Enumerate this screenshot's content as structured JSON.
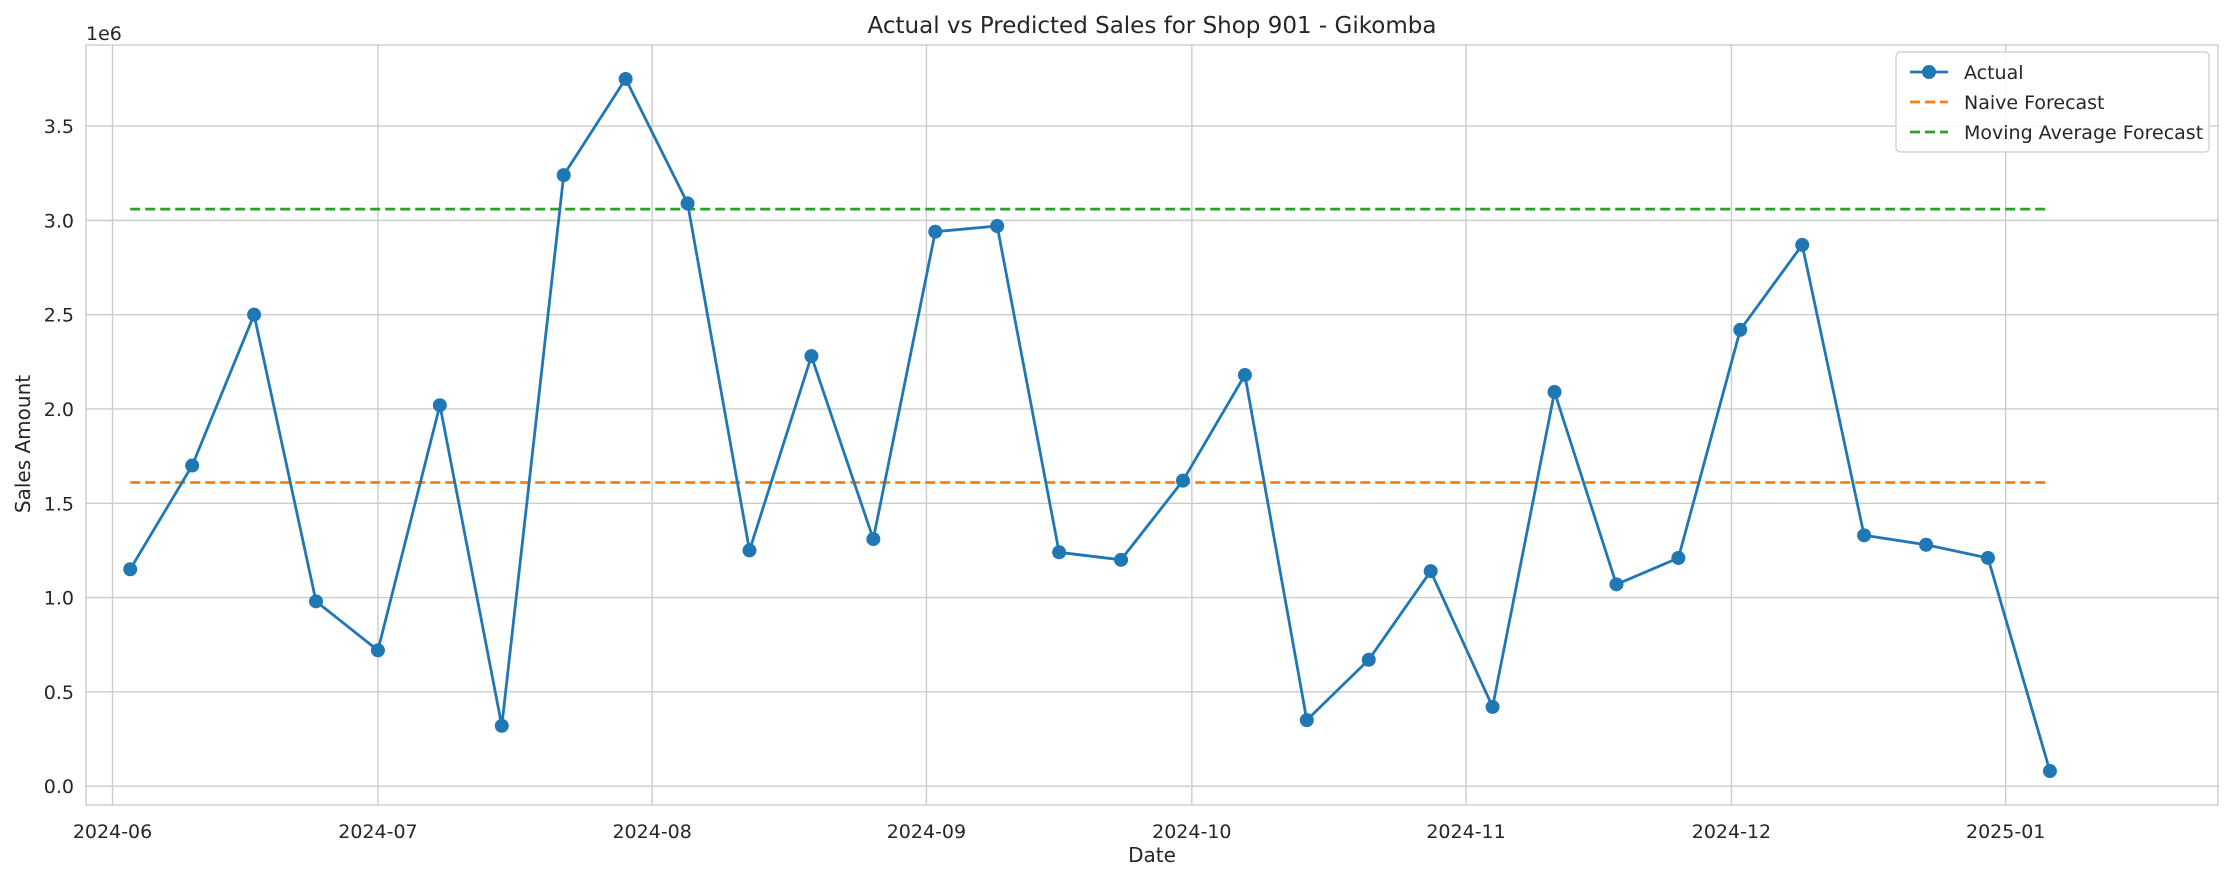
{
  "chart_data": {
    "type": "line",
    "title": "Actual vs Predicted Sales for Shop 901 - Gikomba",
    "xlabel": "Date",
    "ylabel": "Sales Amount",
    "y_multiplier_label": "1e6",
    "x_range": [
      "2024-05-29",
      "2025-01-25"
    ],
    "ylim": [
      -0.1,
      3.93
    ],
    "x_ticks": [
      "2024-06-01",
      "2024-07-01",
      "2024-08-01",
      "2024-09-01",
      "2024-10-01",
      "2024-11-01",
      "2024-12-01",
      "2025-01-01"
    ],
    "x_tick_labels": [
      "2024-06",
      "2024-07",
      "2024-08",
      "2024-09",
      "2024-10",
      "2024-11",
      "2024-12",
      "2025-01"
    ],
    "y_ticks": [
      0.0,
      0.5,
      1.0,
      1.5,
      2.0,
      2.5,
      3.0,
      3.5
    ],
    "y_tick_labels": [
      "0.0",
      "0.5",
      "1.0",
      "1.5",
      "2.0",
      "2.5",
      "3.0",
      "3.5"
    ],
    "grid": true,
    "legend_position": "top-right",
    "series": [
      {
        "name": "Actual",
        "color": "#1f77b4",
        "style": "solid-with-markers",
        "x": [
          "2024-06-03",
          "2024-06-10",
          "2024-06-17",
          "2024-06-24",
          "2024-07-01",
          "2024-07-08",
          "2024-07-15",
          "2024-07-22",
          "2024-07-29",
          "2024-08-05",
          "2024-08-12",
          "2024-08-19",
          "2024-08-26",
          "2024-09-02",
          "2024-09-09",
          "2024-09-16",
          "2024-09-23",
          "2024-09-30",
          "2024-10-07",
          "2024-10-14",
          "2024-10-21",
          "2024-10-28",
          "2024-11-04",
          "2024-11-11",
          "2024-11-18",
          "2024-11-25",
          "2024-12-02",
          "2024-12-09",
          "2024-12-16",
          "2024-12-23",
          "2024-12-30",
          "2025-01-06"
        ],
        "values": [
          1.15,
          1.7,
          2.5,
          0.98,
          0.72,
          2.02,
          0.32,
          3.24,
          3.75,
          3.09,
          1.25,
          2.28,
          1.31,
          2.94,
          2.97,
          1.24,
          1.2,
          1.62,
          2.18,
          0.35,
          0.67,
          1.14,
          0.42,
          2.09,
          1.07,
          1.21,
          2.42,
          2.87,
          1.33,
          1.28,
          1.21,
          0.08
        ]
      },
      {
        "name": "Naive Forecast",
        "color": "#ff7f0e",
        "style": "dashed",
        "x": [
          "2024-06-03",
          "2025-01-06"
        ],
        "values": [
          1.61,
          1.61
        ]
      },
      {
        "name": "Moving Average Forecast",
        "color": "#2ca02c",
        "style": "dashed",
        "x": [
          "2024-06-03",
          "2025-01-06"
        ],
        "values": [
          3.06,
          3.06
        ]
      }
    ]
  }
}
